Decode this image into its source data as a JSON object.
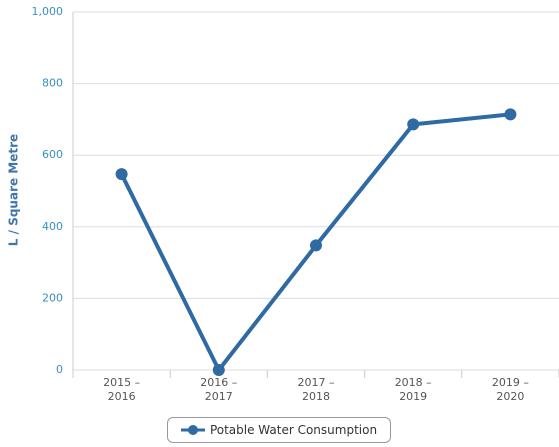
{
  "chart_data": {
    "type": "line",
    "y_axis_label": "L / Square Metre",
    "categories": [
      "2015 – 2016",
      "2016 – 2017",
      "2017 – 2018",
      "2018 – 2019",
      "2019 – 2020"
    ],
    "series": [
      {
        "name": "Potable Water Consumption",
        "color": "#2f6aa3",
        "values": [
          547,
          0,
          348,
          686,
          714
        ]
      }
    ],
    "ylim": [
      0,
      1000
    ],
    "yticks": [
      0,
      200,
      400,
      600,
      800,
      {
        "value": 1000,
        "label": "1,000"
      }
    ],
    "grid": true,
    "legend": "bottom"
  }
}
